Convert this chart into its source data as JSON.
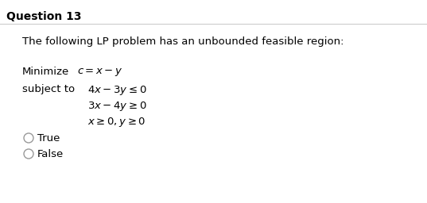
{
  "background_color": "#ffffff",
  "title": "Question 13",
  "title_fontsize": 10,
  "title_bold": true,
  "body_text": "The following LP problem has an unbounded feasible region:",
  "body_fontsize": 9.5,
  "minimize_label": "Minimize",
  "minimize_formula": "$c = x - y$",
  "subject_label": "subject to",
  "constraint1": "$4x - 3y \\leq 0$",
  "constraint2": "$3x - 4y \\geq 0$",
  "constraint3": "$x \\geq 0, y \\geq 0$",
  "true_label": "True",
  "false_label": "False",
  "label_fontsize": 9.5,
  "constraint_fontsize": 9.5
}
